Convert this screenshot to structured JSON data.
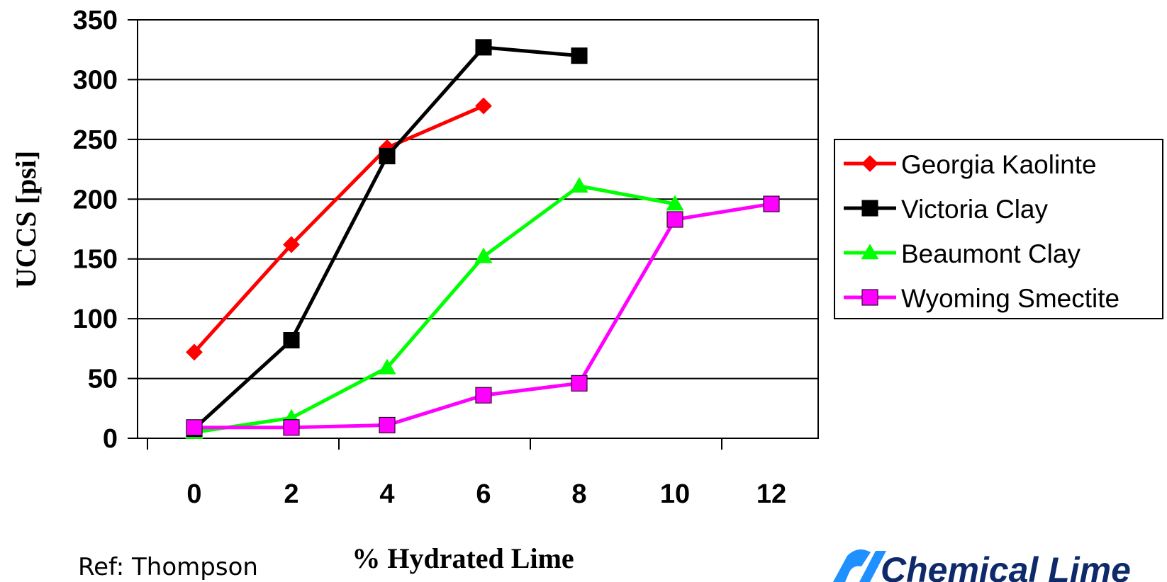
{
  "chart_data": {
    "type": "line",
    "title": "",
    "xlabel": "% Hydrated Lime",
    "ylabel": "UCCS [psi]",
    "categories": [
      "0",
      "2",
      "4",
      "6",
      "8",
      "10",
      "12"
    ],
    "ylim": [
      0,
      350
    ],
    "yticks": [
      "0",
      "50",
      "100",
      "150",
      "200",
      "250",
      "300",
      "350"
    ],
    "grid": "horizontal",
    "legend_position": "right",
    "series": [
      {
        "name": "Georgia Kaolinte",
        "color": "#ff0000",
        "marker": "diamond",
        "values": [
          72,
          162,
          243,
          278,
          null,
          null,
          null
        ]
      },
      {
        "name": "Victoria Clay",
        "color": "#000000",
        "marker": "square",
        "values": [
          8,
          82,
          236,
          327,
          320,
          null,
          null
        ]
      },
      {
        "name": "Beaumont Clay",
        "color": "#00ff00",
        "marker": "triangle",
        "values": [
          5,
          17,
          59,
          152,
          211,
          196,
          null
        ]
      },
      {
        "name": "Wyoming Smectite",
        "color": "#ff00ff",
        "marker": "square",
        "values": [
          9,
          9,
          11,
          36,
          46,
          183,
          196
        ]
      }
    ]
  },
  "footer": {
    "reference": "Ref: Thompson",
    "logo_text": "Chemical Lime",
    "logo_color": "#0f2a6b",
    "logo_mark_color": "#1e90ff"
  }
}
